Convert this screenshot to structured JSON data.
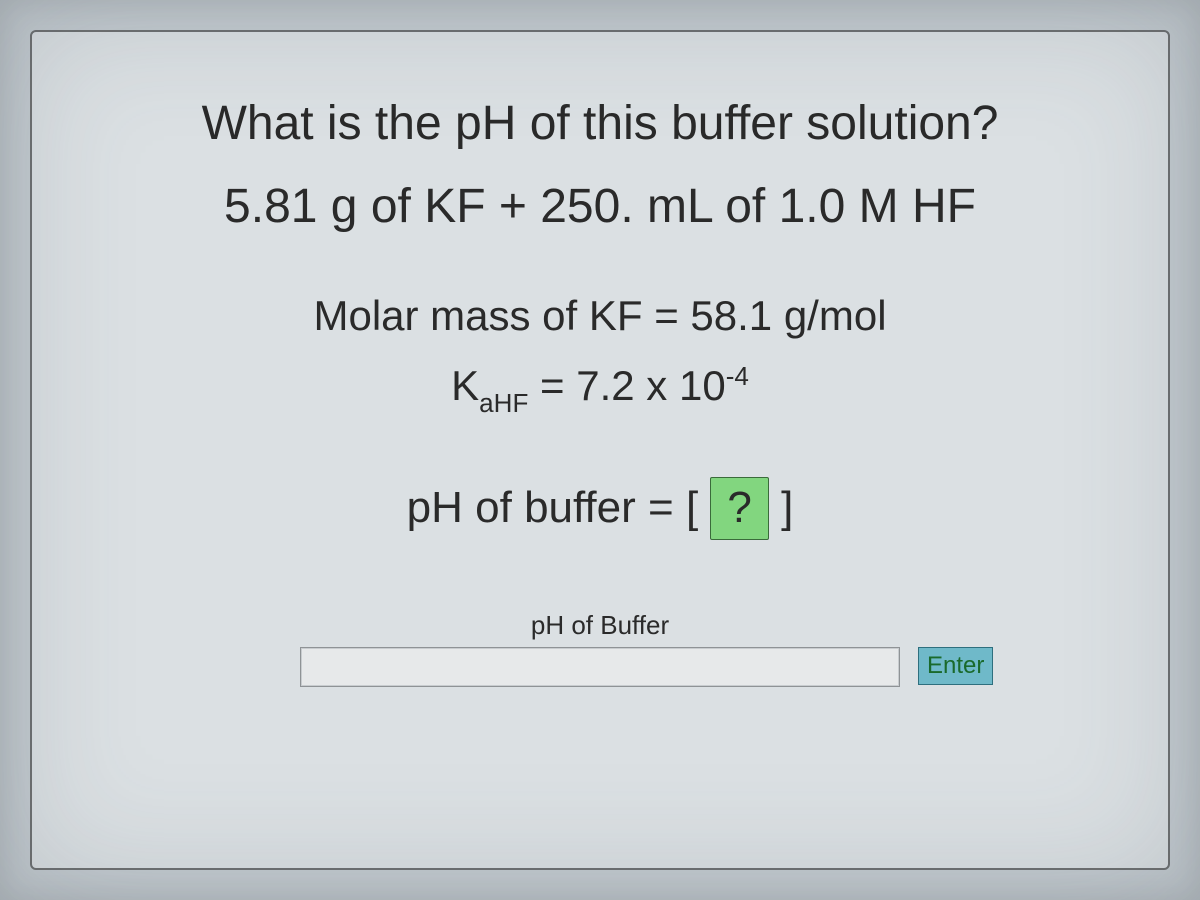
{
  "question": {
    "line1": "What is the pH of this buffer solution?",
    "line2": "5.81 g of KF + 250. mL of 1.0 M HF",
    "molar_mass_prefix": "Molar mass of KF = ",
    "molar_mass_value": "58.1 g/mol",
    "ka_symbol_main": "K",
    "ka_symbol_sub": "aHF",
    "ka_equals": " = ",
    "ka_value_base": "7.2 x 10",
    "ka_value_exp": "-4",
    "answer_line_prefix": "pH of buffer = ",
    "answer_slot_open": "[ ",
    "answer_slot_q": "?",
    "answer_slot_close": " ]"
  },
  "input": {
    "label": "pH of Buffer",
    "placeholder": "",
    "value": ""
  },
  "buttons": {
    "enter": "Enter"
  },
  "style": {
    "panel_bg": "#dbe0e3",
    "body_bg": "#c5ccd1",
    "text_color": "#2a2a2a",
    "slot_bg": "#82d67f",
    "slot_border": "#3a6b3a",
    "enter_bg": "#6fb9c9",
    "enter_fg": "#1a6a2c",
    "enter_border": "#2e6f7e",
    "input_bg": "#e7e9ea",
    "input_border": "#8f9396"
  }
}
